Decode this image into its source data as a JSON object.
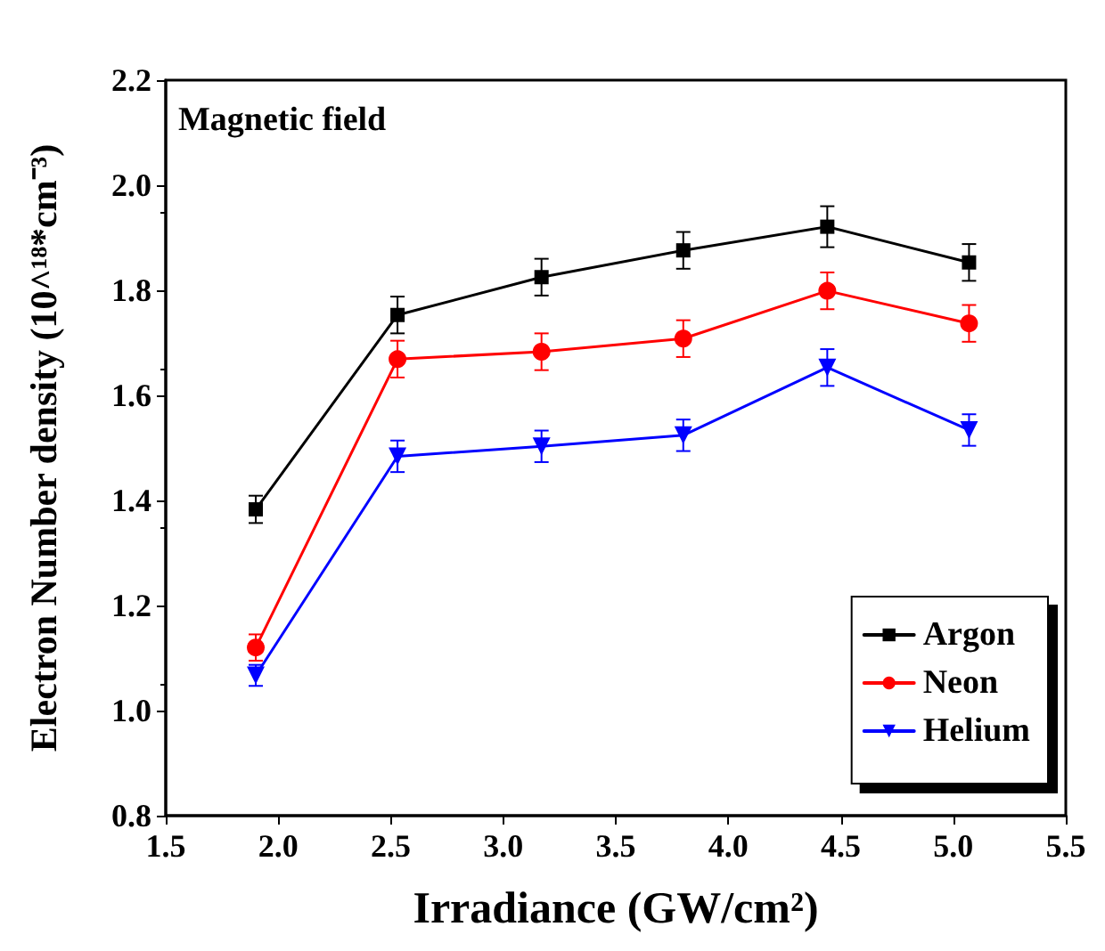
{
  "chart_data": {
    "type": "line",
    "xlabel": "Irradiance (GW/cm²)",
    "ylabel": "Electron Number density (10^¹⁸*cm⁻³)",
    "annotations": [
      "Magnetic field"
    ],
    "x": [
      1.9,
      2.53,
      3.17,
      3.8,
      4.44,
      5.07
    ],
    "series": [
      {
        "name": "Argon",
        "color": "#000000",
        "marker": "square",
        "values": [
          1.383,
          1.753,
          1.825,
          1.876,
          1.921,
          1.853
        ],
        "errors": [
          0.026,
          0.035,
          0.035,
          0.035,
          0.039,
          0.035
        ]
      },
      {
        "name": "Neon",
        "color": "#ff0000",
        "marker": "circle",
        "values": [
          1.12,
          1.669,
          1.683,
          1.708,
          1.799,
          1.737
        ],
        "errors": [
          0.025,
          0.035,
          0.035,
          0.035,
          0.035,
          0.035
        ]
      },
      {
        "name": "Helium",
        "color": "#0000ff",
        "marker": "triangle",
        "values": [
          1.067,
          1.484,
          1.503,
          1.524,
          1.653,
          1.534
        ],
        "errors": [
          0.02,
          0.03,
          0.03,
          0.03,
          0.035,
          0.03
        ]
      }
    ],
    "xlim": [
      1.5,
      5.5
    ],
    "xticks": [
      1.5,
      {
        "value": 2,
        "label": "2.0"
      },
      2.5,
      {
        "value": 3,
        "label": "3.0"
      },
      3.5,
      {
        "value": 4,
        "label": "4.0"
      },
      4.5,
      {
        "value": 5,
        "label": "5.0"
      },
      5.5
    ],
    "ylim": [
      0.8,
      2.2
    ],
    "yticks": [
      0.8,
      {
        "value": 1,
        "label": "1.0"
      },
      1.2,
      1.4,
      1.6,
      1.8,
      {
        "value": 2,
        "label": "2.0"
      },
      2.2
    ],
    "grid": false,
    "legend": "bottom right",
    "line_style": "solid"
  }
}
